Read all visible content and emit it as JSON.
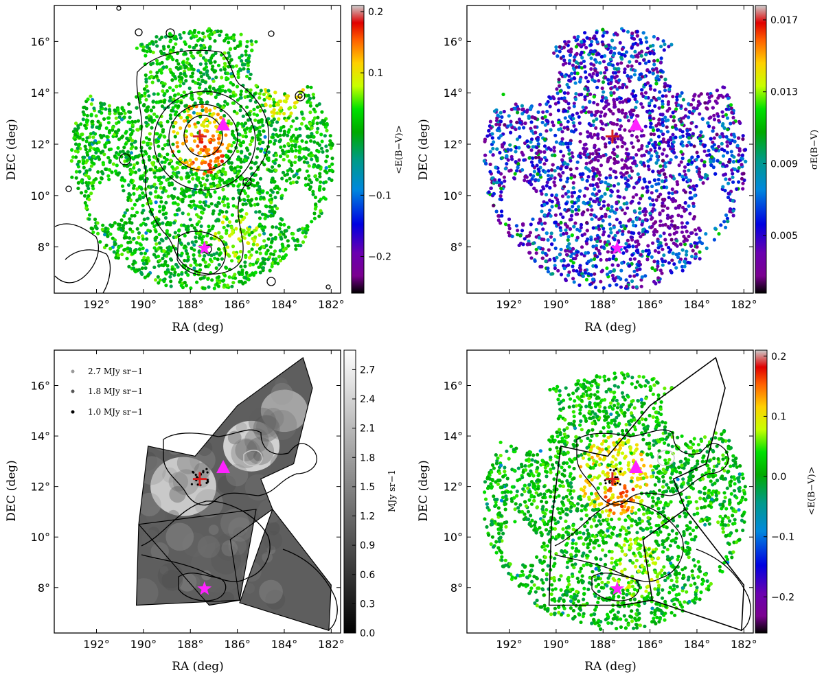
{
  "chart_data": [
    {
      "type": "scatter",
      "panel": "top-left",
      "xlabel": "RA (deg)",
      "ylabel": "DEC (deg)",
      "xlim": [
        193.8,
        181.6
      ],
      "ylim": [
        6.2,
        17.4
      ],
      "xticks": [
        192,
        190,
        188,
        186,
        184,
        182
      ],
      "xtick_labels": [
        "192°",
        "190°",
        "188°",
        "186°",
        "184°",
        "182°"
      ],
      "yticks": [
        8,
        10,
        12,
        14,
        16
      ],
      "ytick_labels": [
        "8°",
        "10°",
        "12°",
        "14°",
        "16°"
      ],
      "colorbar": {
        "label": "<E(B−V)>",
        "range": [
          -0.26,
          0.21
        ],
        "ticks": [
          0.2,
          0.1,
          -0.1,
          -0.2
        ],
        "tick_labels": [
          "0.2",
          "0.1",
          "−0.1",
          "−0.2"
        ],
        "colormap": "spectral"
      },
      "field": {
        "center": [
          187.5,
          11.4
        ],
        "ra_radius": 5.6,
        "dec_radius": 5.1
      },
      "markers": [
        {
          "shape": "cross",
          "ra": 187.6,
          "dec": 12.3,
          "color": "#d62020"
        },
        {
          "shape": "triangle",
          "ra": 186.6,
          "dec": 12.75,
          "color": "#ff22ff"
        },
        {
          "shape": "star",
          "ra": 187.4,
          "dec": 7.95,
          "color": "#ff22ff"
        }
      ],
      "highlights": [
        {
          "ra": 187.6,
          "dec": 12.3,
          "radius": 1.3,
          "value": 0.12
        },
        {
          "ra": 187.3,
          "dec": 11.6,
          "radius": 0.8,
          "value": 0.15
        },
        {
          "ra": 186.0,
          "dec": 8.4,
          "radius": 1.0,
          "value": 0.07
        },
        {
          "ra": 184.0,
          "dec": 13.8,
          "radius": 0.9,
          "value": 0.09
        }
      ],
      "contours": true
    },
    {
      "type": "scatter",
      "panel": "top-right",
      "xlabel": "RA (deg)",
      "ylabel": "DEC (deg)",
      "xlim": [
        193.8,
        181.6
      ],
      "ylim": [
        6.2,
        17.4
      ],
      "xticks": [
        192,
        190,
        188,
        186,
        184,
        182
      ],
      "xtick_labels": [
        "192°",
        "190°",
        "188°",
        "186°",
        "184°",
        "182°"
      ],
      "yticks": [
        8,
        10,
        12,
        14,
        16
      ],
      "ytick_labels": [
        "8°",
        "10°",
        "12°",
        "14°",
        "16°"
      ],
      "colorbar": {
        "label": "σE(B−V)",
        "range": [
          0.0018,
          0.0178
        ],
        "ticks": [
          0.017,
          0.013,
          0.009,
          0.005
        ],
        "tick_labels": [
          "0.017",
          "0.013",
          "0.009",
          "0.005"
        ],
        "colormap": "spectral"
      },
      "field": {
        "center": [
          187.5,
          11.4
        ],
        "ra_radius": 5.6,
        "dec_radius": 5.1
      },
      "markers": [
        {
          "shape": "cross",
          "ra": 187.6,
          "dec": 12.3,
          "color": "#d62020"
        },
        {
          "shape": "triangle",
          "ra": 186.6,
          "dec": 12.75,
          "color": "#ff22ff"
        },
        {
          "shape": "star",
          "ra": 187.4,
          "dec": 7.95,
          "color": "#ff22ff"
        }
      ],
      "highlights": [
        {
          "ra": 187.6,
          "dec": 12.2,
          "radius": 1.5,
          "value": 0.0035
        },
        {
          "ra": 185.0,
          "dec": 9.0,
          "radius": 1.0,
          "value": 0.0035
        },
        {
          "ra": 183.5,
          "dec": 13.8,
          "radius": 0.8,
          "value": 0.0035
        }
      ],
      "contours": false
    },
    {
      "type": "heatmap",
      "panel": "bottom-left",
      "xlabel": "RA (deg)",
      "ylabel": "DEC (deg)",
      "xlim": [
        193.8,
        181.6
      ],
      "ylim": [
        6.2,
        17.4
      ],
      "xticks": [
        192,
        190,
        188,
        186,
        184,
        182
      ],
      "xtick_labels": [
        "192°",
        "190°",
        "188°",
        "186°",
        "184°",
        "182°"
      ],
      "yticks": [
        8,
        10,
        12,
        14,
        16
      ],
      "ytick_labels": [
        "8°",
        "10°",
        "12°",
        "14°",
        "16°"
      ],
      "colorbar": {
        "label": "MJy sr−1",
        "range": [
          0.0,
          2.9
        ],
        "ticks": [
          0.0,
          0.3,
          0.6,
          0.9,
          1.2,
          1.5,
          1.8,
          2.1,
          2.4,
          2.7
        ],
        "tick_labels": [
          "0.0",
          "0.3",
          "0.6",
          "0.9",
          "1.2",
          "1.5",
          "1.8",
          "2.1",
          "2.4",
          "2.7"
        ],
        "colormap": "gray"
      },
      "legend": [
        {
          "label": "2.7 MJy sr−1",
          "color": "#9a9a9a"
        },
        {
          "label": "1.8 MJy sr−1",
          "color": "#555555"
        },
        {
          "label": "1.0 MJy sr−1",
          "color": "#000000"
        }
      ],
      "markers": [
        {
          "shape": "cross",
          "ra": 187.6,
          "dec": 12.3,
          "color": "#d62020"
        },
        {
          "shape": "triangle",
          "ra": 186.6,
          "dec": 12.75,
          "color": "#ff22ff"
        },
        {
          "shape": "star",
          "ra": 187.4,
          "dec": 7.95,
          "color": "#ff22ff"
        }
      ],
      "footprint": [
        [
          [
            187.2,
            7.3
          ],
          [
            185.9,
            7.5
          ],
          [
            186.3,
            9.9
          ],
          [
            184.5,
            11.1
          ],
          [
            185.0,
            12.3
          ],
          [
            183.6,
            12.9
          ],
          [
            182.8,
            15.9
          ],
          [
            183.2,
            17.1
          ],
          [
            186.0,
            15.2
          ],
          [
            187.8,
            13.2
          ],
          [
            189.8,
            13.6
          ],
          [
            190.2,
            10.5
          ]
        ],
        [
          [
            190.3,
            7.3
          ],
          [
            185.9,
            7.5
          ],
          [
            185.2,
            11.1
          ],
          [
            190.2,
            10.5
          ]
        ],
        [
          [
            185.9,
            7.4
          ],
          [
            182.1,
            6.3
          ],
          [
            182.0,
            8.1
          ],
          [
            184.5,
            11.1
          ]
        ]
      ],
      "brightness_peaks": [
        {
          "ra": 188.3,
          "dec": 12.0,
          "radius": 1.4,
          "value": 2.5
        },
        {
          "ra": 185.4,
          "dec": 13.6,
          "radius": 1.2,
          "value": 2.6
        },
        {
          "ra": 184.0,
          "dec": 15.0,
          "radius": 1.0,
          "value": 2.0
        },
        {
          "ra": 186.8,
          "dec": 8.8,
          "radius": 1.2,
          "value": 1.1
        }
      ]
    },
    {
      "type": "scatter",
      "panel": "bottom-right",
      "xlabel": "RA (deg)",
      "ylabel": "DEC (deg)",
      "xlim": [
        193.8,
        181.6
      ],
      "ylim": [
        6.2,
        17.4
      ],
      "xticks": [
        192,
        190,
        188,
        186,
        184,
        182
      ],
      "xtick_labels": [
        "192°",
        "190°",
        "188°",
        "186°",
        "184°",
        "182°"
      ],
      "yticks": [
        8,
        10,
        12,
        14,
        16
      ],
      "ytick_labels": [
        "8°",
        "10°",
        "12°",
        "14°",
        "16°"
      ],
      "colorbar": {
        "label": "<E(B−V)>",
        "range": [
          -0.26,
          0.21
        ],
        "ticks": [
          0.2,
          0.1,
          0.0,
          -0.1,
          -0.2
        ],
        "tick_labels": [
          "0.2",
          "0.1",
          "0.0",
          "−0.1",
          "−0.2"
        ],
        "colormap": "spectral"
      },
      "field": {
        "center": [
          187.5,
          11.4
        ],
        "ra_radius": 5.6,
        "dec_radius": 5.1
      },
      "markers": [
        {
          "shape": "cross",
          "ra": 187.6,
          "dec": 12.3,
          "color": "#d62020"
        },
        {
          "shape": "triangle",
          "ra": 186.6,
          "dec": 12.75,
          "color": "#ff22ff"
        },
        {
          "shape": "star",
          "ra": 187.4,
          "dec": 7.95,
          "color": "#ff22ff"
        }
      ],
      "highlights": [
        {
          "ra": 187.5,
          "dec": 12.4,
          "radius": 1.6,
          "value": 0.1
        },
        {
          "ra": 187.3,
          "dec": 11.6,
          "radius": 0.7,
          "value": 0.15
        },
        {
          "ra": 186.5,
          "dec": 8.8,
          "radius": 1.2,
          "value": 0.07
        }
      ],
      "footprint": [
        [
          [
            190.2,
            10.5
          ],
          [
            189.8,
            13.6
          ],
          [
            187.8,
            13.2
          ],
          [
            186.0,
            15.2
          ],
          [
            183.2,
            17.1
          ],
          [
            182.8,
            15.9
          ],
          [
            183.6,
            12.9
          ],
          [
            185.0,
            12.3
          ],
          [
            184.5,
            11.1
          ],
          [
            186.3,
            9.9
          ],
          [
            185.9,
            7.5
          ],
          [
            187.2,
            7.3
          ],
          [
            190.3,
            7.3
          ],
          [
            190.2,
            10.5
          ]
        ],
        [
          [
            185.9,
            7.5
          ],
          [
            182.1,
            6.3
          ],
          [
            182.0,
            8.1
          ],
          [
            184.5,
            11.1
          ]
        ]
      ]
    }
  ]
}
